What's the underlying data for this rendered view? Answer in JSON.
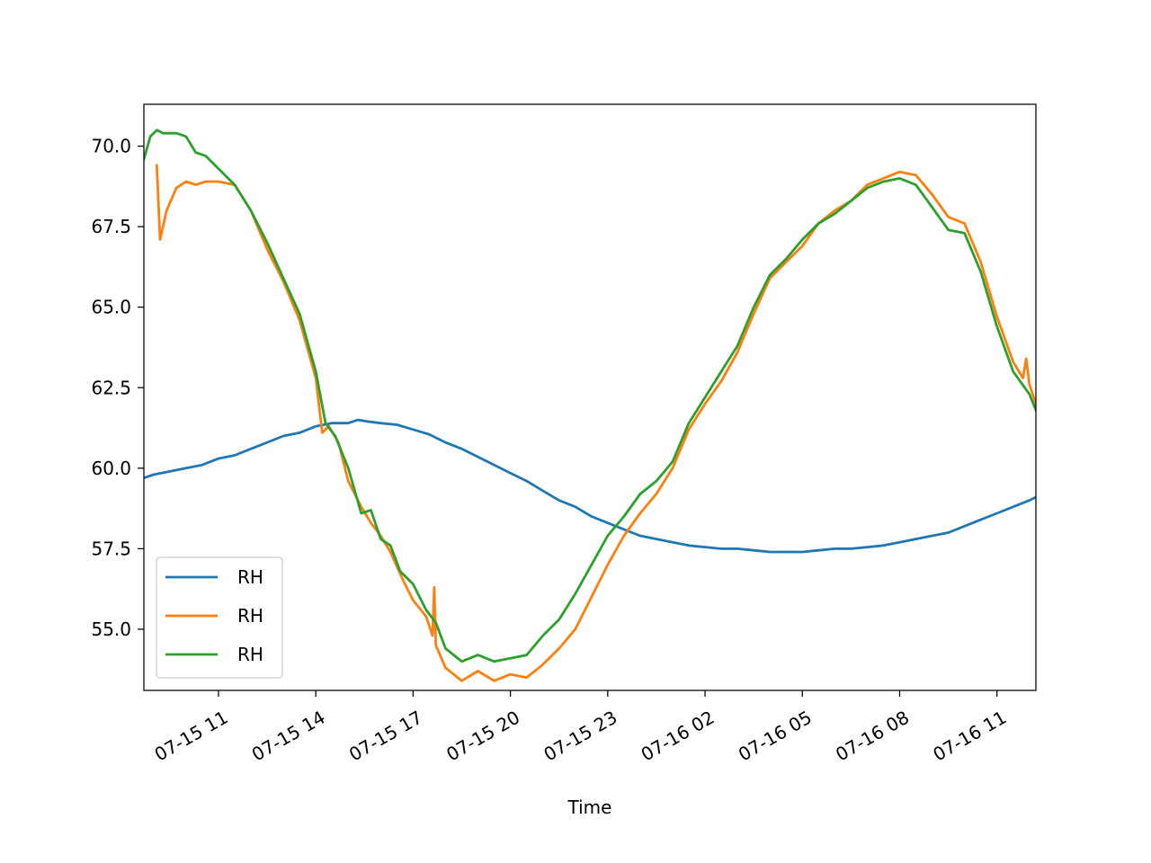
{
  "chart_data": {
    "type": "line",
    "title": "",
    "xlabel": "Time",
    "ylabel": "",
    "x_unit": "hours since 07-15 00:00",
    "xlim": [
      8.7,
      36.2
    ],
    "ylim": [
      53.1,
      71.3
    ],
    "x_ticks": [
      {
        "x": 11,
        "label": "07-15 11"
      },
      {
        "x": 14,
        "label": "07-15 14"
      },
      {
        "x": 17,
        "label": "07-15 17"
      },
      {
        "x": 20,
        "label": "07-15 20"
      },
      {
        "x": 23,
        "label": "07-15 23"
      },
      {
        "x": 26,
        "label": "07-16 02"
      },
      {
        "x": 29,
        "label": "07-16 05"
      },
      {
        "x": 32,
        "label": "07-16 08"
      },
      {
        "x": 35,
        "label": "07-16 11"
      }
    ],
    "y_ticks": [
      {
        "y": 55.0,
        "label": "55.0"
      },
      {
        "y": 57.5,
        "label": "57.5"
      },
      {
        "y": 60.0,
        "label": "60.0"
      },
      {
        "y": 62.5,
        "label": "62.5"
      },
      {
        "y": 65.0,
        "label": "65.0"
      },
      {
        "y": 67.5,
        "label": "67.5"
      },
      {
        "y": 70.0,
        "label": "70.0"
      }
    ],
    "grid": false,
    "legend_position": "lower-left",
    "series": [
      {
        "name": "RH",
        "color": "#1f77b4",
        "points": [
          [
            8.7,
            59.7
          ],
          [
            9.0,
            59.8
          ],
          [
            9.5,
            59.9
          ],
          [
            10.0,
            60.0
          ],
          [
            10.5,
            60.1
          ],
          [
            11.0,
            60.3
          ],
          [
            11.5,
            60.4
          ],
          [
            12.0,
            60.6
          ],
          [
            12.5,
            60.8
          ],
          [
            13.0,
            61.0
          ],
          [
            13.5,
            61.1
          ],
          [
            14.0,
            61.3
          ],
          [
            14.5,
            61.4
          ],
          [
            15.0,
            61.4
          ],
          [
            15.3,
            61.5
          ],
          [
            15.6,
            61.45
          ],
          [
            16.0,
            61.4
          ],
          [
            16.5,
            61.35
          ],
          [
            17.0,
            61.2
          ],
          [
            17.5,
            61.05
          ],
          [
            18.0,
            60.8
          ],
          [
            18.5,
            60.6
          ],
          [
            19.0,
            60.35
          ],
          [
            19.5,
            60.1
          ],
          [
            20.0,
            59.85
          ],
          [
            20.5,
            59.6
          ],
          [
            21.0,
            59.3
          ],
          [
            21.5,
            59.0
          ],
          [
            22.0,
            58.8
          ],
          [
            22.5,
            58.5
          ],
          [
            23.0,
            58.3
          ],
          [
            23.5,
            58.1
          ],
          [
            24.0,
            57.9
          ],
          [
            24.5,
            57.8
          ],
          [
            25.0,
            57.7
          ],
          [
            25.5,
            57.6
          ],
          [
            26.0,
            57.55
          ],
          [
            26.5,
            57.5
          ],
          [
            27.0,
            57.5
          ],
          [
            27.5,
            57.45
          ],
          [
            28.0,
            57.4
          ],
          [
            28.5,
            57.4
          ],
          [
            29.0,
            57.4
          ],
          [
            29.5,
            57.45
          ],
          [
            30.0,
            57.5
          ],
          [
            30.5,
            57.5
          ],
          [
            31.0,
            57.55
          ],
          [
            31.5,
            57.6
          ],
          [
            32.0,
            57.7
          ],
          [
            32.5,
            57.8
          ],
          [
            33.0,
            57.9
          ],
          [
            33.5,
            58.0
          ],
          [
            34.0,
            58.2
          ],
          [
            34.5,
            58.4
          ],
          [
            35.0,
            58.6
          ],
          [
            35.5,
            58.8
          ],
          [
            36.0,
            59.0
          ],
          [
            36.2,
            59.1
          ]
        ]
      },
      {
        "name": "RH",
        "color": "#ff7f0e",
        "points": [
          [
            9.1,
            69.4
          ],
          [
            9.2,
            67.1
          ],
          [
            9.4,
            68.0
          ],
          [
            9.7,
            68.7
          ],
          [
            10.0,
            68.9
          ],
          [
            10.3,
            68.8
          ],
          [
            10.6,
            68.9
          ],
          [
            11.0,
            68.9
          ],
          [
            11.5,
            68.8
          ],
          [
            12.0,
            68.0
          ],
          [
            12.5,
            66.8
          ],
          [
            13.0,
            65.8
          ],
          [
            13.5,
            64.6
          ],
          [
            14.0,
            62.8
          ],
          [
            14.2,
            61.1
          ],
          [
            14.4,
            61.3
          ],
          [
            14.7,
            60.8
          ],
          [
            15.0,
            59.6
          ],
          [
            15.4,
            58.8
          ],
          [
            15.7,
            58.3
          ],
          [
            16.0,
            57.9
          ],
          [
            16.3,
            57.4
          ],
          [
            16.7,
            56.5
          ],
          [
            17.0,
            55.9
          ],
          [
            17.4,
            55.4
          ],
          [
            17.6,
            54.8
          ],
          [
            17.65,
            56.3
          ],
          [
            17.7,
            54.5
          ],
          [
            18.0,
            53.8
          ],
          [
            18.5,
            53.4
          ],
          [
            19.0,
            53.7
          ],
          [
            19.5,
            53.4
          ],
          [
            20.0,
            53.6
          ],
          [
            20.5,
            53.5
          ],
          [
            21.0,
            53.9
          ],
          [
            21.5,
            54.4
          ],
          [
            22.0,
            55.0
          ],
          [
            22.5,
            56.0
          ],
          [
            23.0,
            57.0
          ],
          [
            23.5,
            57.9
          ],
          [
            24.0,
            58.6
          ],
          [
            24.5,
            59.2
          ],
          [
            25.0,
            60.0
          ],
          [
            25.5,
            61.2
          ],
          [
            26.0,
            62.0
          ],
          [
            26.5,
            62.7
          ],
          [
            27.0,
            63.6
          ],
          [
            27.5,
            64.8
          ],
          [
            28.0,
            65.9
          ],
          [
            28.5,
            66.4
          ],
          [
            29.0,
            66.9
          ],
          [
            29.5,
            67.6
          ],
          [
            30.0,
            68.0
          ],
          [
            30.5,
            68.3
          ],
          [
            31.0,
            68.8
          ],
          [
            31.5,
            69.0
          ],
          [
            32.0,
            69.2
          ],
          [
            32.5,
            69.1
          ],
          [
            33.0,
            68.5
          ],
          [
            33.5,
            67.8
          ],
          [
            34.0,
            67.6
          ],
          [
            34.5,
            66.4
          ],
          [
            35.0,
            64.7
          ],
          [
            35.5,
            63.3
          ],
          [
            35.8,
            62.8
          ],
          [
            35.9,
            63.4
          ],
          [
            36.0,
            62.6
          ],
          [
            36.2,
            62.0
          ]
        ]
      },
      {
        "name": "RH",
        "color": "#2ca02c",
        "points": [
          [
            8.7,
            69.6
          ],
          [
            8.9,
            70.3
          ],
          [
            9.1,
            70.5
          ],
          [
            9.3,
            70.4
          ],
          [
            9.7,
            70.4
          ],
          [
            10.0,
            70.3
          ],
          [
            10.3,
            69.8
          ],
          [
            10.6,
            69.7
          ],
          [
            11.0,
            69.3
          ],
          [
            11.5,
            68.8
          ],
          [
            12.0,
            68.0
          ],
          [
            12.5,
            67.0
          ],
          [
            13.0,
            65.9
          ],
          [
            13.5,
            64.8
          ],
          [
            14.0,
            63.0
          ],
          [
            14.3,
            61.4
          ],
          [
            14.6,
            61.0
          ],
          [
            15.0,
            60.0
          ],
          [
            15.4,
            58.6
          ],
          [
            15.7,
            58.7
          ],
          [
            16.0,
            57.8
          ],
          [
            16.3,
            57.6
          ],
          [
            16.6,
            56.8
          ],
          [
            17.0,
            56.4
          ],
          [
            17.4,
            55.6
          ],
          [
            17.7,
            55.2
          ],
          [
            18.0,
            54.4
          ],
          [
            18.5,
            54.0
          ],
          [
            19.0,
            54.2
          ],
          [
            19.5,
            54.0
          ],
          [
            20.0,
            54.1
          ],
          [
            20.5,
            54.2
          ],
          [
            21.0,
            54.8
          ],
          [
            21.5,
            55.3
          ],
          [
            22.0,
            56.1
          ],
          [
            22.5,
            57.0
          ],
          [
            23.0,
            57.9
          ],
          [
            23.5,
            58.5
          ],
          [
            24.0,
            59.2
          ],
          [
            24.5,
            59.6
          ],
          [
            25.0,
            60.2
          ],
          [
            25.5,
            61.4
          ],
          [
            26.0,
            62.2
          ],
          [
            26.5,
            63.0
          ],
          [
            27.0,
            63.8
          ],
          [
            27.5,
            65.0
          ],
          [
            28.0,
            66.0
          ],
          [
            28.5,
            66.5
          ],
          [
            29.0,
            67.1
          ],
          [
            29.5,
            67.6
          ],
          [
            30.0,
            67.9
          ],
          [
            30.5,
            68.3
          ],
          [
            31.0,
            68.7
          ],
          [
            31.5,
            68.9
          ],
          [
            32.0,
            69.0
          ],
          [
            32.5,
            68.8
          ],
          [
            33.0,
            68.1
          ],
          [
            33.5,
            67.4
          ],
          [
            34.0,
            67.3
          ],
          [
            34.5,
            66.1
          ],
          [
            35.0,
            64.4
          ],
          [
            35.5,
            63.0
          ],
          [
            36.0,
            62.3
          ],
          [
            36.2,
            61.8
          ]
        ]
      }
    ]
  }
}
